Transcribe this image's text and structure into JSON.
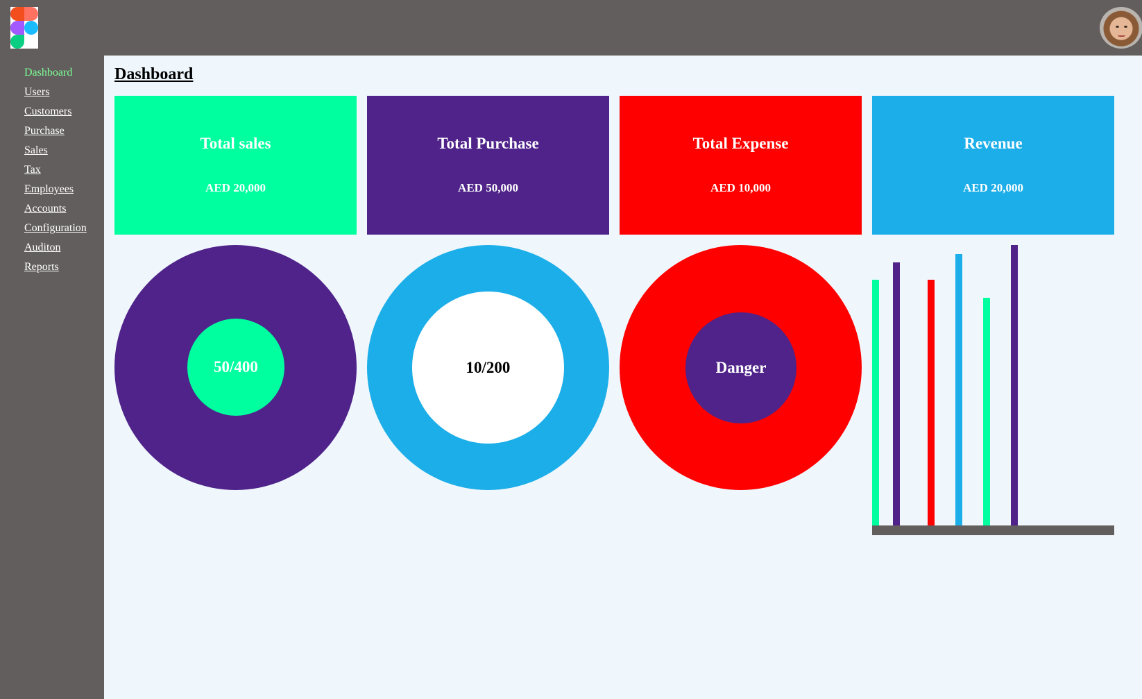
{
  "header": {
    "logo_icon": "figma-logo-icon",
    "avatar_icon": "user-avatar-icon"
  },
  "sidebar": {
    "items": [
      {
        "label": "Dashboard",
        "active": true
      },
      {
        "label": "Users"
      },
      {
        "label": "Customers"
      },
      {
        "label": "Purchase"
      },
      {
        "label": "Sales"
      },
      {
        "label": "Tax"
      },
      {
        "label": "Employees"
      },
      {
        "label": "Accounts"
      },
      {
        "label": "Configuration"
      },
      {
        "label": "Auditon"
      },
      {
        "label": "Reports"
      }
    ]
  },
  "main": {
    "title": "Dashboard",
    "cards": [
      {
        "title": "Total sales",
        "value": "AED 20,000",
        "color": "#00ff9f"
      },
      {
        "title": "Total Purchase",
        "value": "AED 50,000",
        "color": "#4f2389"
      },
      {
        "title": "Total Expense",
        "value": "AED 10,000",
        "color": "#ff0000"
      },
      {
        "title": "Revenue",
        "value": "AED 20,000",
        "color": "#1caee8"
      }
    ],
    "donuts": [
      {
        "label": "50/400",
        "ring_color": "#4f2389",
        "center_color": "#00ff9f",
        "text_color": "#ffffff"
      },
      {
        "label": "10/200",
        "ring_color": "#1caee8",
        "center_color": "#ffffff",
        "text_color": "#000000"
      },
      {
        "label": "Danger",
        "ring_color": "#ff0000",
        "center_color": "#4f2389",
        "text_color": "#ffffff"
      }
    ]
  },
  "chart_data": {
    "type": "bar",
    "title": "",
    "xlabel": "",
    "ylabel": "",
    "grid": false,
    "bars": [
      {
        "value": 280,
        "color": "#00ff9f"
      },
      {
        "value": 300,
        "color": "#4f2389"
      },
      {
        "value": 280,
        "color": "#ff0000"
      },
      {
        "value": 310,
        "color": "#1caee8"
      },
      {
        "value": 260,
        "color": "#00ff9f"
      },
      {
        "value": 320,
        "color": "#4f2389"
      }
    ],
    "ylim": [
      0,
      320
    ],
    "colors": {
      "axis_base": "#635e5e"
    }
  }
}
